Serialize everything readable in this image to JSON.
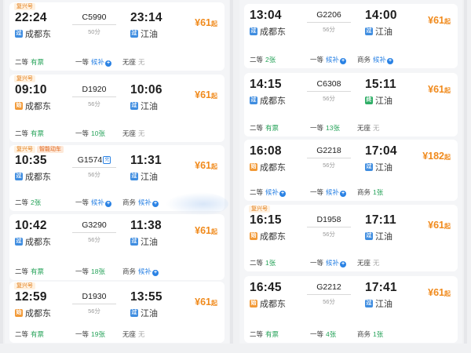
{
  "colors": {
    "price": "#f08a1c",
    "available_green": "#27a35a",
    "waitlist_blue": "#2a82e4",
    "start_station_orange": "#f29a38",
    "pass_station_blue": "#3f8de0",
    "end_station_green": "#2fae66"
  },
  "icons": {
    "start": "始",
    "pass": "过",
    "end": "终",
    "plus": "+"
  },
  "left_trains": [
    {
      "badges": [
        "复兴号"
      ],
      "dep_time": "22:24",
      "train_no": "C5990",
      "fx_tag": "",
      "arr_time": "23:14",
      "duration": "50分",
      "dep_station": "成都东",
      "dep_icon": "pass",
      "arr_station": "江油",
      "arr_icon": "pass",
      "price_symbol": "¥",
      "price": "61",
      "price_unit": "起",
      "seats": [
        {
          "cls": "二等",
          "avail": "有票",
          "style": "green",
          "plus": false
        },
        {
          "cls": "一等",
          "avail": "候补",
          "style": "blue",
          "plus": true
        },
        {
          "cls": "无座",
          "avail": "无",
          "style": "gray",
          "plus": false
        }
      ]
    },
    {
      "badges": [
        "复兴号"
      ],
      "dep_time": "09:10",
      "train_no": "D1920",
      "fx_tag": "",
      "arr_time": "10:06",
      "duration": "56分",
      "dep_station": "成都东",
      "dep_icon": "start",
      "arr_station": "江油",
      "arr_icon": "pass",
      "price_symbol": "¥",
      "price": "61",
      "price_unit": "起",
      "seats": [
        {
          "cls": "二等",
          "avail": "有票",
          "style": "green",
          "plus": false
        },
        {
          "cls": "一等",
          "avail": "10张",
          "style": "green",
          "plus": false
        },
        {
          "cls": "无座",
          "avail": "无",
          "style": "gray",
          "plus": false
        }
      ]
    },
    {
      "badges": [
        "复兴号",
        "智能动车"
      ],
      "dep_time": "10:35",
      "train_no": "G1574",
      "fx_tag": "兑",
      "arr_time": "11:31",
      "duration": "56分",
      "dep_station": "成都东",
      "dep_icon": "pass",
      "arr_station": "江油",
      "arr_icon": "pass",
      "price_symbol": "¥",
      "price": "61",
      "price_unit": "起",
      "seats": [
        {
          "cls": "二等",
          "avail": "2张",
          "style": "green",
          "plus": false
        },
        {
          "cls": "一等",
          "avail": "候补",
          "style": "blue",
          "plus": true
        },
        {
          "cls": "商务",
          "avail": "候补",
          "style": "blue",
          "plus": true
        }
      ]
    },
    {
      "badges": [],
      "dep_time": "10:42",
      "train_no": "G3290",
      "fx_tag": "",
      "arr_time": "11:38",
      "duration": "56分",
      "dep_station": "成都东",
      "dep_icon": "pass",
      "arr_station": "江油",
      "arr_icon": "pass",
      "price_symbol": "¥",
      "price": "61",
      "price_unit": "起",
      "seats": [
        {
          "cls": "二等",
          "avail": "有票",
          "style": "green",
          "plus": false
        },
        {
          "cls": "一等",
          "avail": "18张",
          "style": "green",
          "plus": false
        },
        {
          "cls": "商务",
          "avail": "候补",
          "style": "blue",
          "plus": true
        }
      ]
    },
    {
      "badges": [
        "复兴号"
      ],
      "dep_time": "12:59",
      "train_no": "D1930",
      "fx_tag": "",
      "arr_time": "13:55",
      "duration": "56分",
      "dep_station": "成都东",
      "dep_icon": "start",
      "arr_station": "江油",
      "arr_icon": "pass",
      "price_symbol": "¥",
      "price": "61",
      "price_unit": "起",
      "seats": [
        {
          "cls": "二等",
          "avail": "有票",
          "style": "green",
          "plus": false
        },
        {
          "cls": "一等",
          "avail": "19张",
          "style": "green",
          "plus": false
        },
        {
          "cls": "无座",
          "avail": "无",
          "style": "gray",
          "plus": false
        }
      ]
    }
  ],
  "right_trains": [
    {
      "badges": [],
      "dep_time": "13:04",
      "train_no": "G2206",
      "fx_tag": "",
      "arr_time": "14:00",
      "duration": "56分",
      "dep_station": "成都东",
      "dep_icon": "pass",
      "arr_station": "江油",
      "arr_icon": "pass",
      "price_symbol": "¥",
      "price": "61",
      "price_unit": "起",
      "seats": [
        {
          "cls": "二等",
          "avail": "2张",
          "style": "green",
          "plus": false
        },
        {
          "cls": "一等",
          "avail": "候补",
          "style": "blue",
          "plus": true
        },
        {
          "cls": "商务",
          "avail": "候补",
          "style": "blue",
          "plus": true
        }
      ]
    },
    {
      "badges": [],
      "dep_time": "14:15",
      "train_no": "C6308",
      "fx_tag": "",
      "arr_time": "15:11",
      "duration": "56分",
      "dep_station": "成都东",
      "dep_icon": "pass",
      "arr_station": "江油",
      "arr_icon": "end",
      "price_symbol": "¥",
      "price": "61",
      "price_unit": "起",
      "seats": [
        {
          "cls": "二等",
          "avail": "有票",
          "style": "green",
          "plus": false
        },
        {
          "cls": "一等",
          "avail": "13张",
          "style": "green",
          "plus": false
        },
        {
          "cls": "无座",
          "avail": "无",
          "style": "gray",
          "plus": false
        }
      ]
    },
    {
      "badges": [],
      "dep_time": "16:08",
      "train_no": "G2218",
      "fx_tag": "",
      "arr_time": "17:04",
      "duration": "56分",
      "dep_station": "成都东",
      "dep_icon": "start",
      "arr_station": "江油",
      "arr_icon": "pass",
      "price_symbol": "¥",
      "price": "182",
      "price_unit": "起",
      "seats": [
        {
          "cls": "二等",
          "avail": "候补",
          "style": "blue",
          "plus": true
        },
        {
          "cls": "一等",
          "avail": "候补",
          "style": "blue",
          "plus": true
        },
        {
          "cls": "商务",
          "avail": "1张",
          "style": "green",
          "plus": false
        }
      ]
    },
    {
      "badges": [
        "复兴号"
      ],
      "dep_time": "16:15",
      "train_no": "D1958",
      "fx_tag": "",
      "arr_time": "17:11",
      "duration": "56分",
      "dep_station": "成都东",
      "dep_icon": "start",
      "arr_station": "江油",
      "arr_icon": "pass",
      "price_symbol": "¥",
      "price": "61",
      "price_unit": "起",
      "seats": [
        {
          "cls": "二等",
          "avail": "1张",
          "style": "green",
          "plus": false
        },
        {
          "cls": "一等",
          "avail": "候补",
          "style": "blue",
          "plus": true
        },
        {
          "cls": "无座",
          "avail": "无",
          "style": "gray",
          "plus": false
        }
      ]
    },
    {
      "badges": [],
      "dep_time": "16:45",
      "train_no": "G2212",
      "fx_tag": "",
      "arr_time": "17:41",
      "duration": "56分",
      "dep_station": "成都东",
      "dep_icon": "start",
      "arr_station": "江油",
      "arr_icon": "pass",
      "price_symbol": "¥",
      "price": "61",
      "price_unit": "起",
      "seats": [
        {
          "cls": "二等",
          "avail": "有票",
          "style": "green",
          "plus": false
        },
        {
          "cls": "一等",
          "avail": "4张",
          "style": "green",
          "plus": false
        },
        {
          "cls": "商务",
          "avail": "1张",
          "style": "green",
          "plus": false
        }
      ]
    }
  ]
}
